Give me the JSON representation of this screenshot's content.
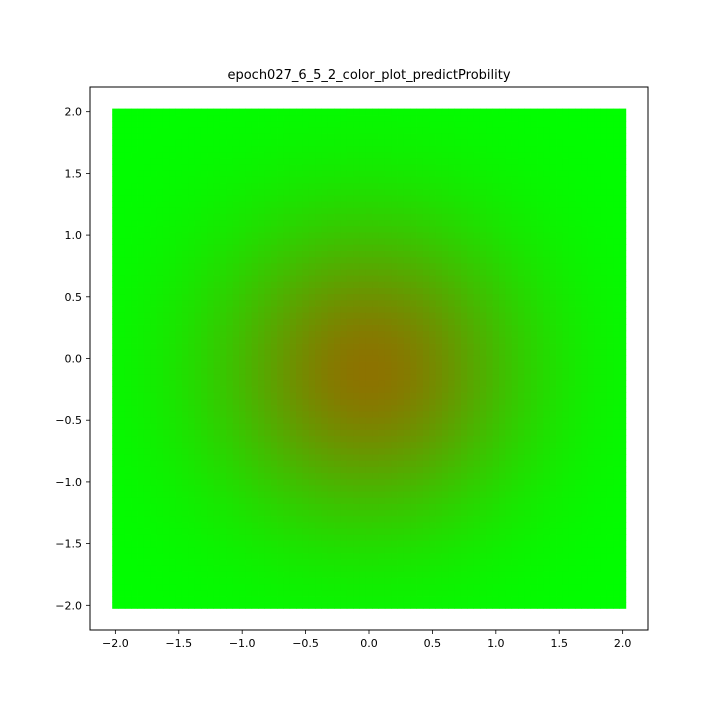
{
  "chart_data": {
    "type": "heatmap",
    "title": "epoch027_6_5_2_color_plot_predictProbility",
    "xlabel": "",
    "ylabel": "",
    "xlim": [
      -2.2,
      2.2
    ],
    "ylim": [
      -2.2,
      2.2
    ],
    "grid": false,
    "x_ticks": [
      -2.0,
      -1.5,
      -1.0,
      -0.5,
      0.0,
      0.5,
      1.0,
      1.5,
      2.0
    ],
    "y_ticks": [
      -2.0,
      -1.5,
      -1.0,
      -0.5,
      0.0,
      0.5,
      1.0,
      1.5,
      2.0
    ],
    "x_tick_labels": [
      "−2.0",
      "−1.5",
      "−1.0",
      "−0.5",
      "0.0",
      "0.5",
      "1.0",
      "1.5",
      "2.0"
    ],
    "y_tick_labels": [
      "−2.0",
      "−1.5",
      "−1.0",
      "−0.5",
      "0.0",
      "0.5",
      "1.0",
      "1.5",
      "2.0"
    ],
    "grid_x_range": [
      -2.0,
      2.0
    ],
    "grid_y_range": [
      -2.0,
      2.0
    ],
    "grid_points_per_axis": 81,
    "center": [
      0.0,
      -0.1
    ],
    "center_value": 0.55,
    "falloff_radius": 0.85,
    "colors": {
      "high": "#ff0000",
      "low": "#00ff00",
      "axes": "#000000",
      "background": "#ffffff"
    }
  }
}
